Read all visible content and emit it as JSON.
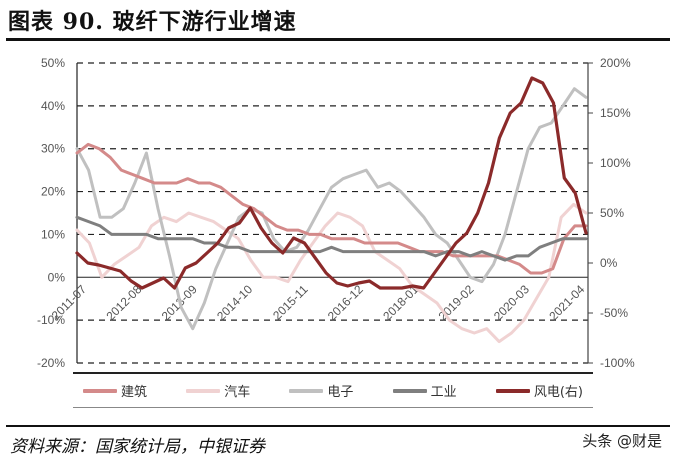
{
  "header": {
    "title": "图表 90. 玻纤下游行业增速"
  },
  "footer": {
    "source": "资料来源：国家统计局，中银证券",
    "watermark": "头条 @财是"
  },
  "chart_data": {
    "type": "line",
    "title": "玻纤下游行业增速",
    "xlabel": "",
    "ylabel": "",
    "y_left": {
      "ylim": [
        -0.2,
        0.5
      ],
      "ticks": [
        "-20%",
        "-10%",
        "0%",
        "10%",
        "20%",
        "30%",
        "40%",
        "50%"
      ]
    },
    "y_right": {
      "ylim": [
        -1.0,
        2.0
      ],
      "ticks": [
        "-100%",
        "-50%",
        "0%",
        "50%",
        "100%",
        "150%",
        "200%"
      ]
    },
    "x_ticks": [
      "2011-07",
      "2012-08",
      "2013-09",
      "2014-10",
      "2015-11",
      "2016-12",
      "2018-01",
      "2019-02",
      "2020-03",
      "2021-04"
    ],
    "grid": "horizontal dashed",
    "legend_position": "bottom",
    "x_start": "2011-07",
    "x_months_step": 3,
    "series": [
      {
        "name": "建筑",
        "axis": "left",
        "color": "#d48a8a",
        "values": [
          0.29,
          0.31,
          0.3,
          0.28,
          0.25,
          0.24,
          0.23,
          0.22,
          0.22,
          0.22,
          0.23,
          0.22,
          0.22,
          0.21,
          0.19,
          0.17,
          0.16,
          0.14,
          0.12,
          0.11,
          0.11,
          0.1,
          0.1,
          0.09,
          0.09,
          0.09,
          0.08,
          0.08,
          0.08,
          0.08,
          0.07,
          0.06,
          0.06,
          0.06,
          0.05,
          0.05,
          0.05,
          0.05,
          0.05,
          0.04,
          0.03,
          0.01,
          0.01,
          0.02,
          0.09,
          0.12,
          0.12
        ]
      },
      {
        "name": "汽车",
        "axis": "left",
        "color": "#f0d2d2",
        "values": [
          0.11,
          0.08,
          0.0,
          0.03,
          0.05,
          0.07,
          0.12,
          0.14,
          0.13,
          0.15,
          0.14,
          0.13,
          0.11,
          0.09,
          0.04,
          0.0,
          0.0,
          -0.01,
          0.04,
          0.08,
          0.12,
          0.15,
          0.14,
          0.12,
          0.06,
          0.04,
          0.02,
          -0.02,
          -0.04,
          -0.06,
          -0.1,
          -0.12,
          -0.13,
          -0.12,
          -0.15,
          -0.13,
          -0.1,
          -0.05,
          0.0,
          0.14,
          0.17,
          0.15
        ]
      },
      {
        "name": "电子",
        "axis": "left",
        "color": "#c0c0c0",
        "values": [
          0.3,
          0.25,
          0.14,
          0.14,
          0.16,
          0.22,
          0.29,
          0.16,
          0.05,
          -0.07,
          -0.12,
          -0.06,
          0.02,
          0.08,
          0.14,
          0.16,
          0.15,
          0.09,
          0.06,
          0.07,
          0.11,
          0.16,
          0.21,
          0.23,
          0.24,
          0.25,
          0.21,
          0.22,
          0.2,
          0.17,
          0.14,
          0.1,
          0.08,
          0.04,
          0.0,
          -0.01,
          0.03,
          0.1,
          0.2,
          0.3,
          0.35,
          0.36,
          0.4,
          0.44,
          0.42
        ]
      },
      {
        "name": "工业",
        "axis": "left",
        "color": "#7f7f7f",
        "values": [
          0.14,
          0.13,
          0.12,
          0.1,
          0.1,
          0.1,
          0.1,
          0.09,
          0.09,
          0.09,
          0.09,
          0.08,
          0.08,
          0.07,
          0.07,
          0.06,
          0.06,
          0.06,
          0.06,
          0.06,
          0.06,
          0.06,
          0.07,
          0.06,
          0.06,
          0.06,
          0.06,
          0.06,
          0.06,
          0.06,
          0.06,
          0.05,
          0.06,
          0.06,
          0.05,
          0.06,
          0.05,
          0.04,
          0.05,
          0.05,
          0.07,
          0.08,
          0.09,
          0.09,
          0.09
        ]
      },
      {
        "name": "风电(右)",
        "axis": "right",
        "color": "#8b2a2a",
        "values": [
          0.1,
          0.0,
          -0.02,
          -0.05,
          -0.08,
          -0.18,
          -0.25,
          -0.2,
          -0.15,
          -0.25,
          -0.05,
          0.0,
          0.1,
          0.2,
          0.35,
          0.4,
          0.55,
          0.35,
          0.2,
          0.1,
          0.25,
          0.2,
          0.05,
          -0.1,
          -0.2,
          -0.23,
          -0.2,
          -0.18,
          -0.25,
          -0.25,
          -0.25,
          -0.23,
          -0.25,
          -0.1,
          0.05,
          0.2,
          0.3,
          0.5,
          0.8,
          1.25,
          1.5,
          1.6,
          1.85,
          1.8,
          1.6,
          0.85,
          0.7,
          0.3
        ]
      }
    ]
  },
  "legend": {
    "items": [
      {
        "label": "建筑",
        "color": "#d48a8a"
      },
      {
        "label": "汽车",
        "color": "#f0d2d2"
      },
      {
        "label": "电子",
        "color": "#c0c0c0"
      },
      {
        "label": "工业",
        "color": "#7f7f7f"
      },
      {
        "label": "风电(右)",
        "color": "#8b2a2a"
      }
    ]
  }
}
